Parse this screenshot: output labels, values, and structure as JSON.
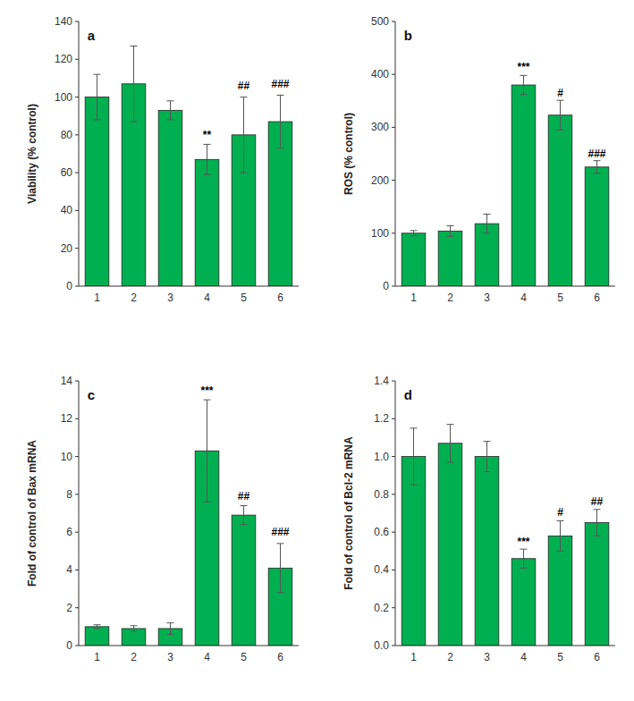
{
  "chart_data": [
    {
      "type": "bar",
      "title": "a",
      "categories": [
        "1",
        "2",
        "3",
        "4",
        "5",
        "6"
      ],
      "values": [
        100,
        107,
        93,
        67,
        80,
        87
      ],
      "errors": [
        12,
        20,
        5,
        8,
        20,
        14
      ],
      "color": "#00B050",
      "ylabel": "Viability (% control)",
      "ylim": [
        0,
        140
      ],
      "yticks": [
        0,
        20,
        40,
        60,
        80,
        100,
        120,
        140
      ],
      "grid": false,
      "annotations": [
        {
          "text": "**",
          "x": "4",
          "y": 77
        },
        {
          "text": "##",
          "x": "5",
          "y": 103
        },
        {
          "text": "###",
          "x": "6",
          "y": 104
        }
      ]
    },
    {
      "type": "bar",
      "title": "b",
      "categories": [
        "1",
        "2",
        "3",
        "4",
        "5",
        "6"
      ],
      "values": [
        100,
        104,
        118,
        380,
        323,
        225
      ],
      "errors": [
        5,
        10,
        18,
        18,
        28,
        12
      ],
      "color": "#00B050",
      "ylabel": "ROS (% control)",
      "ylim": [
        0,
        500
      ],
      "yticks": [
        0,
        100,
        200,
        300,
        400,
        500
      ],
      "grid": false,
      "annotations": [
        {
          "text": "***",
          "x": "4",
          "y": 403
        },
        {
          "text": "#",
          "x": "5",
          "y": 355
        },
        {
          "text": "###",
          "x": "6",
          "y": 240
        }
      ]
    },
    {
      "type": "bar",
      "title": "c",
      "categories": [
        "1",
        "2",
        "3",
        "4",
        "5",
        "6"
      ],
      "values": [
        1.0,
        0.9,
        0.9,
        10.3,
        6.9,
        4.1
      ],
      "errors": [
        0.1,
        0.15,
        0.3,
        2.7,
        0.5,
        1.3
      ],
      "color": "#00B050",
      "ylabel": "Fold of control of Bax mRNA",
      "ylim": [
        0,
        14
      ],
      "yticks": [
        0,
        2,
        4,
        6,
        8,
        10,
        12,
        14
      ],
      "grid": false,
      "annotations": [
        {
          "text": "***",
          "x": "4",
          "y": 13.2
        },
        {
          "text": "##",
          "x": "5",
          "y": 7.6
        },
        {
          "text": "###",
          "x": "6",
          "y": 5.7
        }
      ]
    },
    {
      "type": "bar",
      "title": "d",
      "categories": [
        "1",
        "2",
        "3",
        "4",
        "5",
        "6"
      ],
      "values": [
        1.0,
        1.07,
        1.0,
        0.46,
        0.58,
        0.65
      ],
      "errors": [
        0.15,
        0.1,
        0.08,
        0.05,
        0.08,
        0.07
      ],
      "color": "#00B050",
      "ylabel": "Fold of control of Bcl-2 mRNA",
      "ylim": [
        0,
        1.4
      ],
      "yticks": [
        {
          "value": 0,
          "label": "0.0"
        },
        0.2,
        0.4,
        0.6,
        0.8,
        {
          "value": 1,
          "label": "1.0"
        },
        1.2,
        1.4
      ],
      "grid": false,
      "annotations": [
        {
          "text": "***",
          "x": "4",
          "y": 0.52
        },
        {
          "text": "#",
          "x": "5",
          "y": 0.675
        },
        {
          "text": "##",
          "x": "6",
          "y": 0.735
        }
      ]
    }
  ]
}
